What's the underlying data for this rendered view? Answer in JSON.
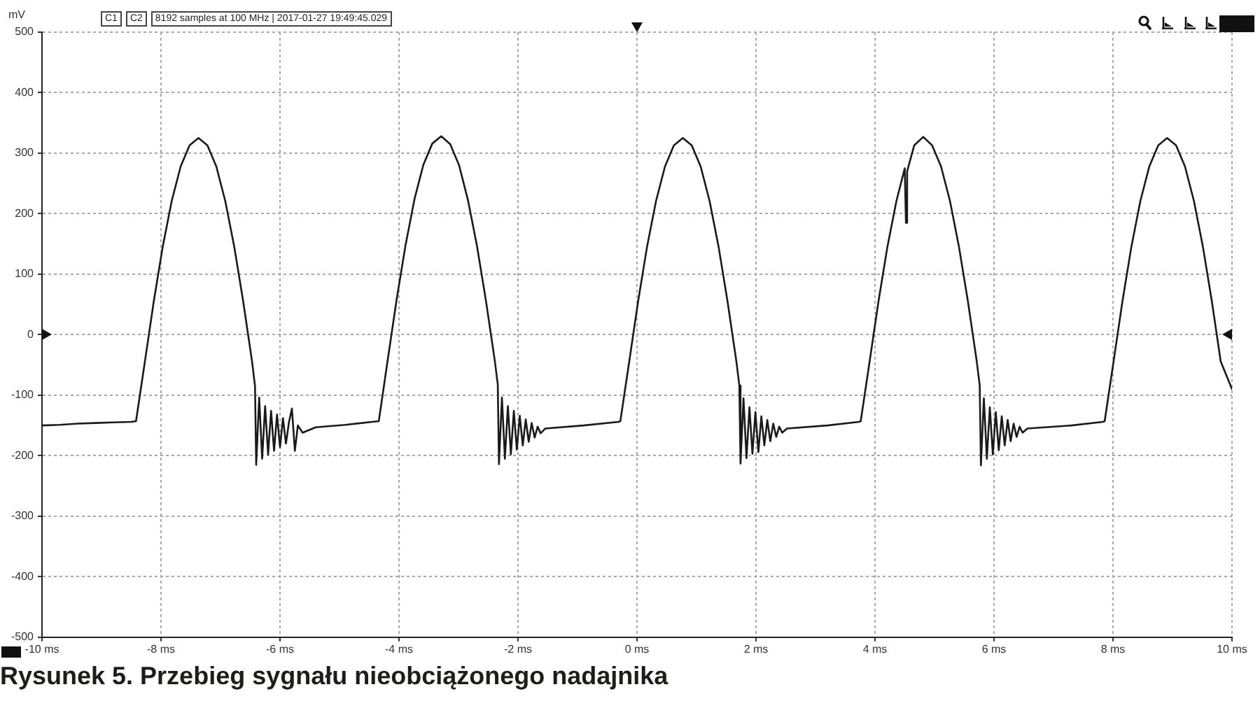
{
  "chart_data": {
    "type": "line",
    "title": "Rysunek 5. Przebieg sygnału nieobciążonego nadajnika",
    "ylabel": "mV",
    "annotations": [
      "C1",
      "C2",
      "8192 samples at 100 MHz | 2017-01-27 19:49:45.029"
    ],
    "xlim": [
      -10,
      10
    ],
    "xticks": [
      {
        "value": -10,
        "label": "-10 ms"
      },
      {
        "value": -8,
        "label": "-8 ms"
      },
      {
        "value": -6,
        "label": "-6 ms"
      },
      {
        "value": -4,
        "label": "-4 ms"
      },
      {
        "value": -2,
        "label": "-2 ms"
      },
      {
        "value": 0,
        "label": "0 ms"
      },
      {
        "value": 2,
        "label": "2 ms"
      },
      {
        "value": 4,
        "label": "4 ms"
      },
      {
        "value": 6,
        "label": "6 ms"
      },
      {
        "value": 8,
        "label": "8 ms"
      },
      {
        "value": 10,
        "label": "10 ms"
      }
    ],
    "ylim": [
      -500,
      500
    ],
    "yticks": [
      -500,
      -400,
      -300,
      -200,
      -100,
      0,
      100,
      200,
      300,
      400,
      500
    ],
    "grid": true,
    "legend": false,
    "marker": "none",
    "line_style": "solid",
    "series": [
      {
        "color": "#1a1a1a",
        "x": [
          -10,
          -9.7,
          -9.4,
          -9.1,
          -8.8,
          -8.5,
          -8.42,
          -8.27,
          -8.12,
          -7.97,
          -7.82,
          -7.67,
          -7.52,
          -7.37,
          -7.22,
          -7.07,
          -6.92,
          -6.77,
          -6.62,
          -6.47,
          -6.42,
          -6.4,
          -6.35,
          -6.3,
          -6.25,
          -6.2,
          -6.15,
          -6.1,
          -6.05,
          -6,
          -5.95,
          -5.9,
          -5.85,
          -5.8,
          -5.75,
          -5.7,
          -5.62,
          -5.4,
          -4.9,
          -4.45,
          -4.34,
          -4.19,
          -4.04,
          -3.89,
          -3.74,
          -3.59,
          -3.44,
          -3.29,
          -3.14,
          -2.99,
          -2.84,
          -2.69,
          -2.54,
          -2.39,
          -2.34,
          -2.32,
          -2.27,
          -2.22,
          -2.17,
          -2.12,
          -2.07,
          -2.02,
          -1.97,
          -1.92,
          -1.87,
          -1.82,
          -1.77,
          -1.72,
          -1.67,
          -1.62,
          -1.54,
          -0.9,
          -0.31,
          -0.28,
          -0.13,
          0.02,
          0.17,
          0.32,
          0.47,
          0.62,
          0.77,
          0.92,
          1.07,
          1.22,
          1.37,
          1.52,
          1.67,
          1.72,
          1.74,
          1.79,
          1.84,
          1.89,
          1.94,
          1.99,
          2.04,
          2.09,
          2.14,
          2.19,
          2.24,
          2.29,
          2.34,
          2.39,
          2.44,
          2.52,
          3.2,
          3.73,
          3.76,
          3.91,
          4.06,
          4.21,
          4.36,
          4.5,
          4.52,
          4.54,
          4.66,
          4.81,
          4.96,
          5.11,
          5.26,
          5.41,
          5.56,
          5.71,
          5.76,
          5.78,
          5.83,
          5.88,
          5.93,
          5.98,
          6.03,
          6.08,
          6.13,
          6.18,
          6.23,
          6.28,
          6.33,
          6.38,
          6.43,
          6.48,
          6.56,
          7.3,
          7.83,
          7.86,
          8.01,
          8.16,
          8.31,
          8.46,
          8.61,
          8.76,
          8.91,
          9.06,
          9.21,
          9.36,
          9.51,
          9.66,
          9.81,
          10
        ],
        "values": [
          -150,
          -149,
          -147,
          -146,
          -145,
          -144,
          -143,
          -44,
          56,
          146,
          221,
          278,
          313,
          325,
          313,
          278,
          221,
          146,
          56,
          -44,
          -85,
          -215,
          -104,
          -205,
          -118,
          -198,
          -126,
          -192,
          -132,
          -186,
          -138,
          -180,
          -145,
          -122,
          -192,
          -150,
          -162,
          -153,
          -149,
          -144,
          -143,
          -42,
          58,
          148,
          224,
          281,
          316,
          328,
          315,
          280,
          222,
          147,
          57,
          -43,
          -82,
          -214,
          -104,
          -205,
          -118,
          -198,
          -126,
          -190,
          -134,
          -183,
          -140,
          -177,
          -146,
          -170,
          -152,
          -163,
          -155,
          -150,
          -144,
          -143,
          -44,
          56,
          146,
          221,
          278,
          313,
          325,
          313,
          278,
          221,
          146,
          56,
          -44,
          -84,
          -213,
          -105,
          -204,
          -120,
          -197,
          -128,
          -194,
          -135,
          -183,
          -141,
          -176,
          -147,
          -169,
          -152,
          -162,
          -155,
          -150,
          -144,
          -143,
          -44,
          56,
          146,
          221,
          275,
          185,
          270,
          313,
          327,
          313,
          278,
          221,
          146,
          56,
          -44,
          -84,
          -216,
          -105,
          -205,
          -120,
          -198,
          -128,
          -191,
          -135,
          -183,
          -141,
          -176,
          -147,
          -169,
          -152,
          -162,
          -155,
          -150,
          -144,
          -143,
          -44,
          56,
          146,
          221,
          278,
          313,
          325,
          313,
          278,
          221,
          146,
          56,
          -44,
          -90
        ]
      }
    ]
  }
}
